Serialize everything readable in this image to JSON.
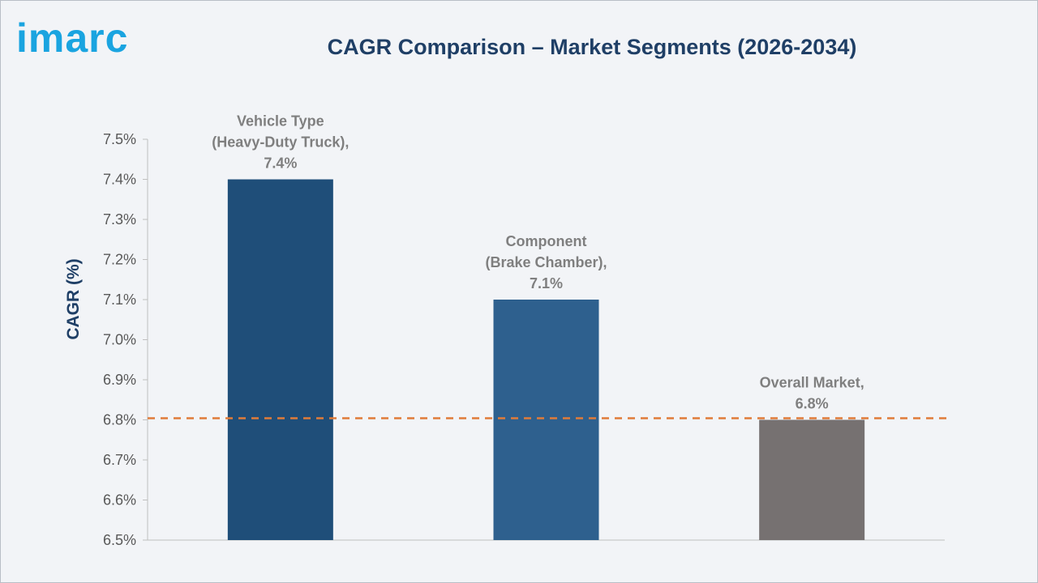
{
  "header": {
    "logo_text": "imarc",
    "title": "CAGR Comparison – Market Segments (2026-2034)"
  },
  "chart_data": {
    "type": "bar",
    "title": "CAGR Comparison – Market Segments (2026-2034)",
    "xlabel": "",
    "ylabel": "CAGR (%)",
    "ylim": [
      6.5,
      7.5
    ],
    "ytick_step": 0.1,
    "ytick_labels": [
      "6.5%",
      "6.6%",
      "6.7%",
      "6.8%",
      "6.9%",
      "7.0%",
      "7.1%",
      "7.2%",
      "7.3%",
      "7.4%",
      "7.5%"
    ],
    "grid": false,
    "categories": [
      "Vehicle Type (Heavy-Duty Truck)",
      "Component (Brake Chamber)",
      "Overall Market"
    ],
    "values": [
      7.4,
      7.1,
      6.8
    ],
    "data_labels": [
      [
        "Vehicle Type",
        "(Heavy-Duty Truck),",
        "7.4%"
      ],
      [
        "Component",
        "(Brake Chamber),",
        "7.1%"
      ],
      [
        "Overall Market,",
        "6.8%"
      ]
    ],
    "bar_colors": [
      "#1f4e79",
      "#2e608e",
      "#767171"
    ],
    "reference_line": {
      "value": 6.8,
      "style": "dashed",
      "color": "#e07b39"
    }
  }
}
